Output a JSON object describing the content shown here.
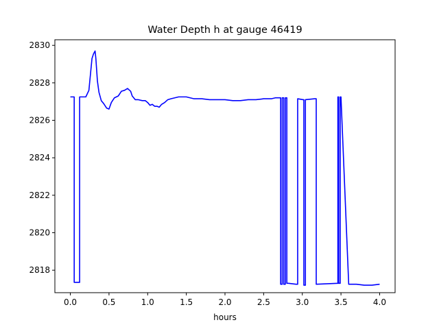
{
  "chart_data": {
    "type": "line",
    "title": "Water Depth h at gauge 46419",
    "xlabel": "hours",
    "ylabel": "",
    "xlim": [
      -0.2,
      4.2
    ],
    "ylim": [
      2816.8,
      2830.3
    ],
    "xticks": [
      0.0,
      0.5,
      1.0,
      1.5,
      2.0,
      2.5,
      3.0,
      3.5,
      4.0
    ],
    "xtick_labels": [
      "0.0",
      "0.5",
      "1.0",
      "1.5",
      "2.0",
      "2.5",
      "3.0",
      "3.5",
      "4.0"
    ],
    "yticks": [
      2818,
      2820,
      2822,
      2824,
      2826,
      2828,
      2830
    ],
    "ytick_labels": [
      "2818",
      "2820",
      "2822",
      "2824",
      "2826",
      "2828",
      "2830"
    ],
    "grid": false,
    "series": [
      {
        "color": "#0000ff",
        "x": [
          0.0,
          0.05,
          0.05,
          0.12,
          0.12,
          0.2,
          0.24,
          0.28,
          0.3,
          0.32,
          0.33,
          0.35,
          0.37,
          0.4,
          0.43,
          0.47,
          0.5,
          0.53,
          0.57,
          0.62,
          0.66,
          0.7,
          0.74,
          0.78,
          0.8,
          0.84,
          0.88,
          0.93,
          0.97,
          1.0,
          1.03,
          1.06,
          1.09,
          1.12,
          1.15,
          1.18,
          1.22,
          1.26,
          1.3,
          1.35,
          1.4,
          1.45,
          1.5,
          1.55,
          1.6,
          1.7,
          1.8,
          1.9,
          2.0,
          2.1,
          2.2,
          2.3,
          2.4,
          2.5,
          2.6,
          2.65,
          2.7,
          2.72,
          2.72,
          2.74,
          2.74,
          2.76,
          2.76,
          2.78,
          2.78,
          2.8,
          2.8,
          2.82,
          2.92,
          2.94,
          2.94,
          3.01,
          3.02,
          3.02,
          3.04,
          3.04,
          3.16,
          3.18,
          3.18,
          3.46,
          3.46,
          3.47,
          3.47,
          3.49,
          3.49,
          3.5,
          3.6,
          3.7,
          3.8,
          3.9,
          4.0
        ],
        "y": [
          2827.25,
          2827.25,
          2817.35,
          2817.35,
          2827.25,
          2827.25,
          2827.6,
          2829.3,
          2829.55,
          2829.7,
          2829.3,
          2828.1,
          2827.5,
          2827.05,
          2826.9,
          2826.65,
          2826.6,
          2826.95,
          2827.2,
          2827.3,
          2827.55,
          2827.6,
          2827.7,
          2827.55,
          2827.3,
          2827.1,
          2827.1,
          2827.05,
          2827.05,
          2826.95,
          2826.8,
          2826.85,
          2826.75,
          2826.75,
          2826.7,
          2826.85,
          2826.95,
          2827.1,
          2827.15,
          2827.2,
          2827.25,
          2827.25,
          2827.25,
          2827.2,
          2827.15,
          2827.15,
          2827.1,
          2827.1,
          2827.1,
          2827.05,
          2827.05,
          2827.1,
          2827.1,
          2827.15,
          2827.15,
          2827.2,
          2827.2,
          2827.2,
          2817.25,
          2817.25,
          2827.2,
          2827.2,
          2817.25,
          2817.25,
          2827.2,
          2827.2,
          2817.3,
          2817.3,
          2817.25,
          2817.25,
          2827.15,
          2827.1,
          2827.1,
          2817.2,
          2817.2,
          2827.1,
          2827.15,
          2827.15,
          2817.25,
          2817.3,
          2827.25,
          2827.25,
          2817.3,
          2817.3,
          2827.25,
          2827.25,
          2817.25,
          2817.25,
          2817.2,
          2817.2,
          2817.25
        ]
      }
    ]
  }
}
